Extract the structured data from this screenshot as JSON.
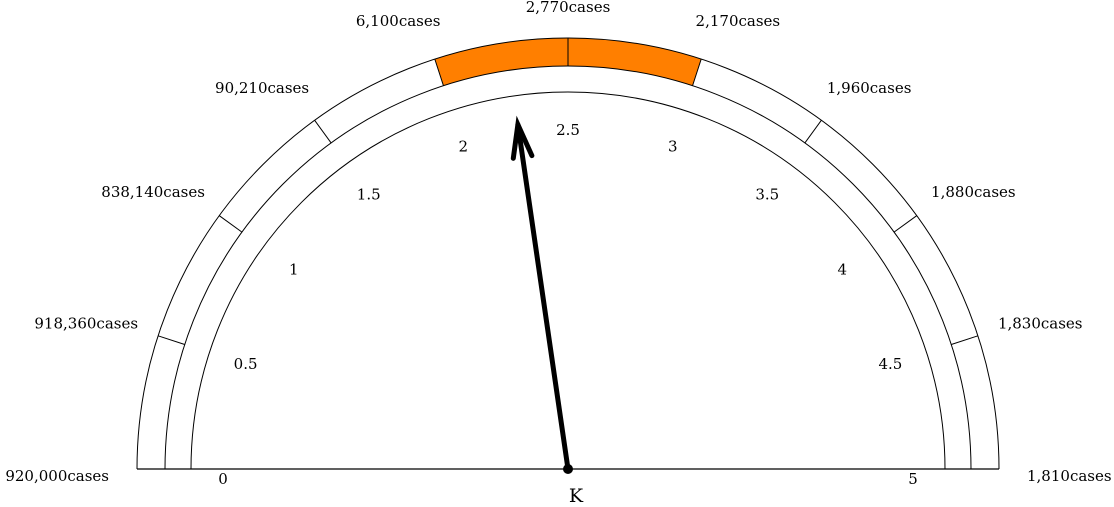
{
  "chart_data": {
    "type": "gauge",
    "axis": {
      "min": 0,
      "max": 5,
      "ticks": [
        "0",
        "0.5",
        "1",
        "1.5",
        "2",
        "2.5",
        "3",
        "3.5",
        "4",
        "4.5",
        "5"
      ]
    },
    "band_boundaries": [
      0,
      0.5,
      1,
      1.5,
      2,
      2.5,
      3,
      3.5,
      4,
      4.5,
      5
    ],
    "outer_labels": [
      "920,000cases",
      "918,360cases",
      "838,140cases",
      "90,210cases",
      "6,100cases",
      "2,770cases",
      "2,170cases",
      "1,960cases",
      "1,880cases",
      "1,830cases",
      "1,810cases"
    ],
    "highlight_range": [
      2,
      3
    ],
    "highlight_color": "#ff7f00",
    "needle_value": 2.27,
    "needle_label": "K"
  }
}
